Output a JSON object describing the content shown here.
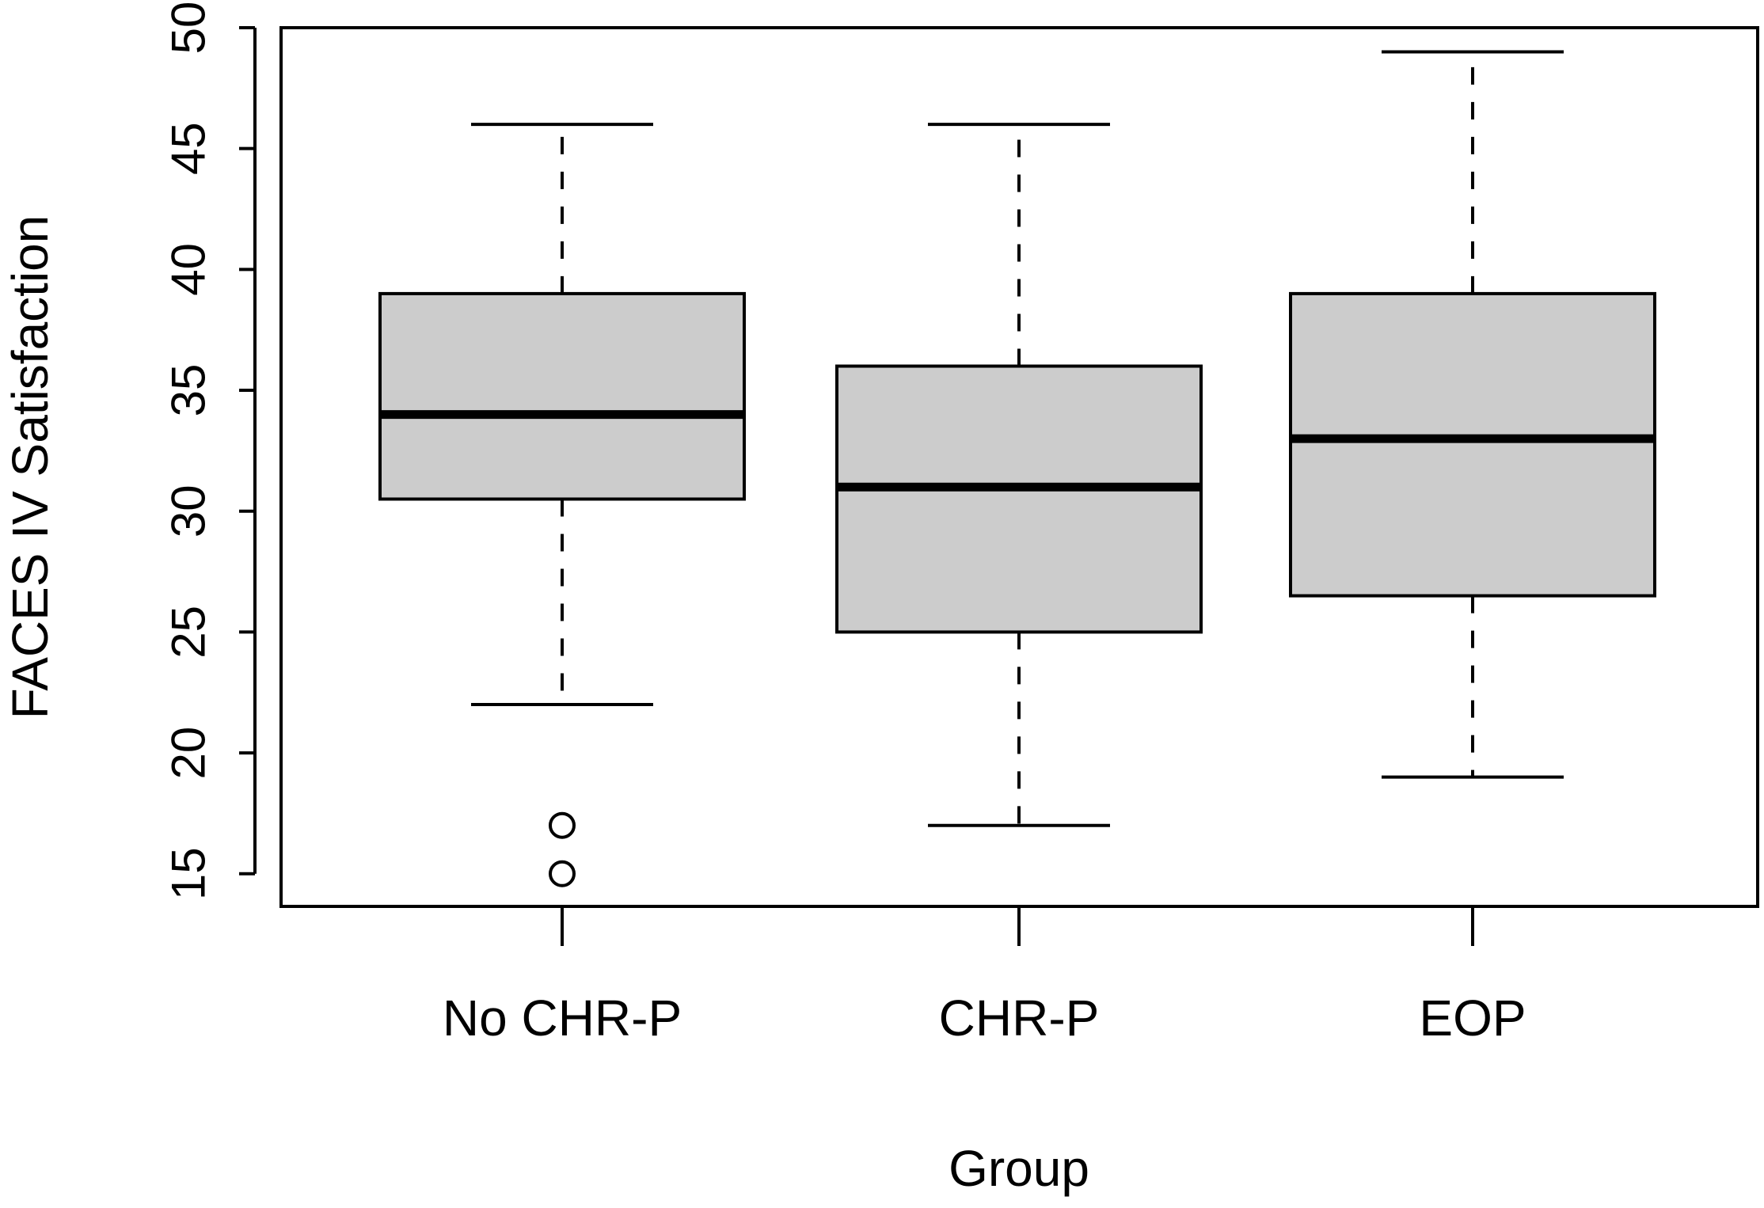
{
  "chart_data": {
    "type": "boxplot",
    "xlabel": "Group",
    "ylabel": "FACES IV Satisfaction",
    "ylim": [
      13.65,
      50
    ],
    "yticks": [
      15,
      20,
      25,
      30,
      35,
      40,
      45,
      50
    ],
    "categories": [
      "No CHR-P",
      "CHR-P",
      "EOP"
    ],
    "boxes": [
      {
        "category": "No CHR-P",
        "whisker_low": 22,
        "q1": 30.5,
        "median": 34,
        "q3": 39,
        "whisker_high": 46,
        "outliers": [
          17,
          15
        ]
      },
      {
        "category": "CHR-P",
        "whisker_low": 17,
        "q1": 25,
        "median": 31,
        "q3": 36,
        "whisker_high": 46,
        "outliers": []
      },
      {
        "category": "EOP",
        "whisker_low": 19,
        "q1": 26.5,
        "median": 33,
        "q3": 39,
        "whisker_high": 49,
        "outliers": []
      }
    ],
    "box_fill": "#cccccc",
    "line_color": "#000000",
    "grid": false,
    "legend": "none"
  }
}
